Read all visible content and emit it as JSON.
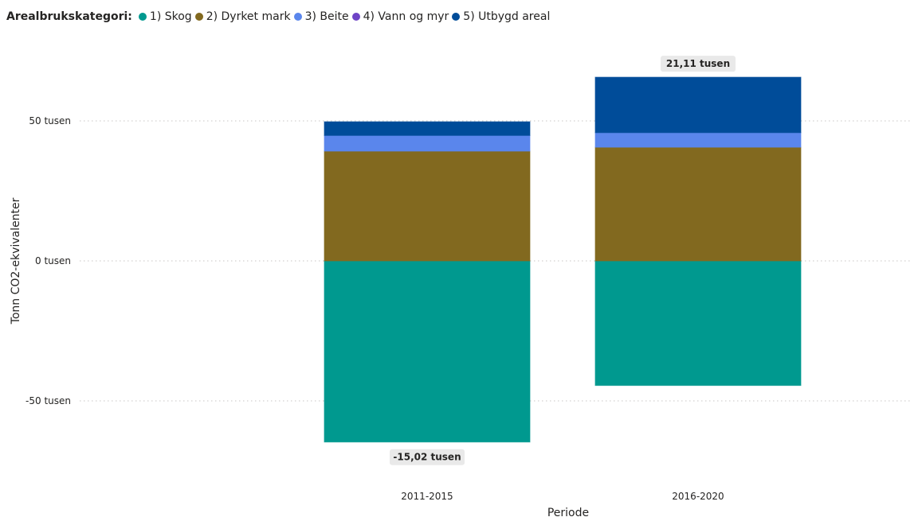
{
  "legend": {
    "title": "Arealbrukskategori:",
    "items": [
      {
        "label": "1) Skog",
        "color": "#00998F"
      },
      {
        "label": "2) Dyrket mark",
        "color": "#82691F"
      },
      {
        "label": "3) Beite",
        "color": "#5A86EC"
      },
      {
        "label": "4) Vann og myr",
        "color": "#6E44C6"
      },
      {
        "label": "5) Utbygd areal",
        "color": "#004C99"
      }
    ]
  },
  "chart_data": {
    "type": "bar",
    "stacked": true,
    "xlabel": "Periode",
    "ylabel": "Tonn CO2-ekvivalenter",
    "categories": [
      "2011-2015",
      "2016-2020"
    ],
    "ylim": [
      -65,
      65
    ],
    "yticks": [
      {
        "value": 50,
        "label": "50 tusen"
      },
      {
        "value": 0,
        "label": "0 tusen"
      },
      {
        "value": -50,
        "label": "-50 tusen"
      }
    ],
    "grid": true,
    "legend_position": "top-left",
    "unit": "tusen",
    "series": [
      {
        "name": "1) Skog",
        "color": "#00998F",
        "values": [
          -64.7,
          -44.5
        ]
      },
      {
        "name": "2) Dyrket mark",
        "color": "#82691F",
        "values": [
          39.2,
          40.6
        ]
      },
      {
        "name": "3) Beite",
        "color": "#5A86EC",
        "values": [
          5.6,
          5.2
        ]
      },
      {
        "name": "4) Vann og myr",
        "color": "#6E44C6",
        "values": [
          0,
          0
        ]
      },
      {
        "name": "5) Utbygd areal",
        "color": "#004C99",
        "values": [
          4.9,
          19.8
        ]
      }
    ],
    "total_labels": [
      {
        "category": "2011-2015",
        "text": "-15,02 tusen",
        "position": "below"
      },
      {
        "category": "2016-2020",
        "text": "21,11 tusen",
        "position": "above"
      }
    ]
  }
}
